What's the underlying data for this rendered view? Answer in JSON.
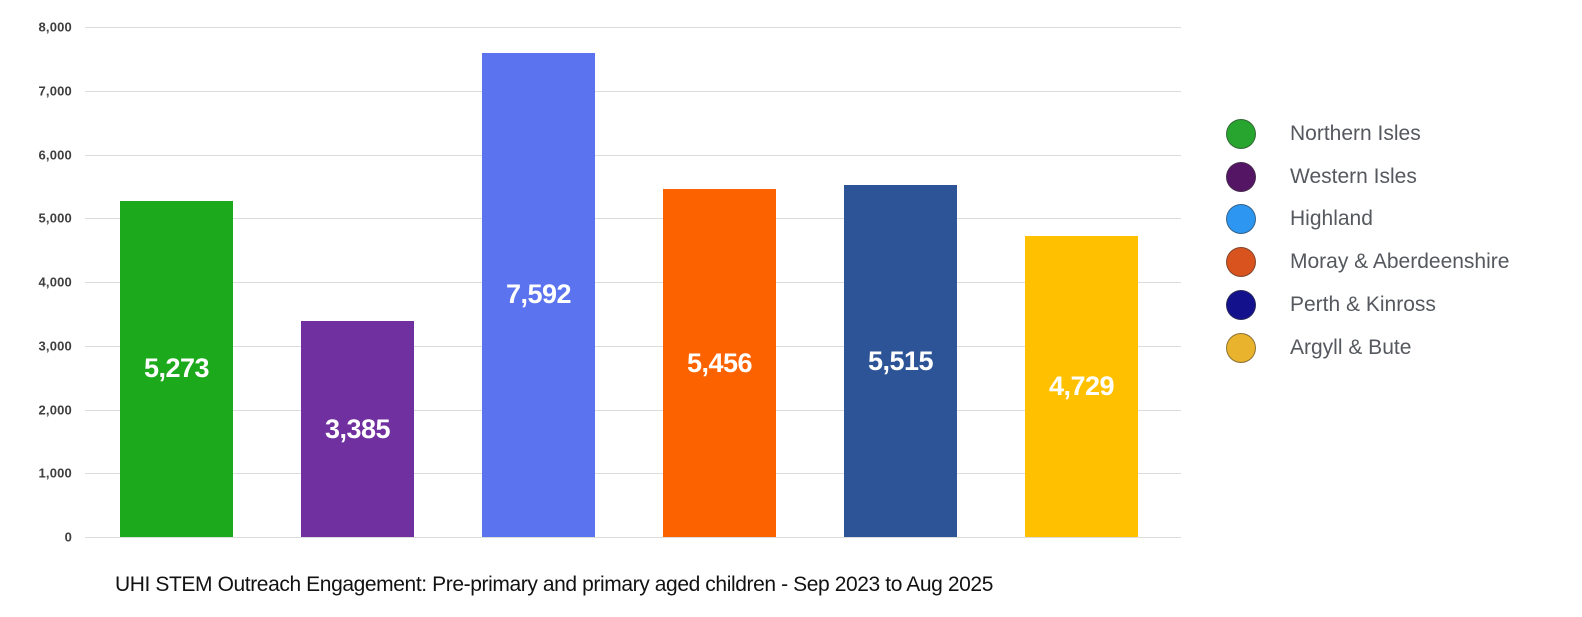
{
  "chart_data": {
    "type": "bar",
    "title": "UHI STEM Outreach Engagement: Pre-primary and primary aged children - Sep 2023 to Aug 2025",
    "xlabel": "",
    "ylabel": "",
    "ylim": [
      0,
      8000
    ],
    "ytick_interval": 1000,
    "ytick_labels": [
      "0",
      "1,000",
      "2,000",
      "3,000",
      "4,000",
      "5,000",
      "6,000",
      "7,000",
      "8,000"
    ],
    "grid": true,
    "legend_position": "right",
    "categories": [
      "Northern Isles",
      "Western Isles",
      "Highland",
      "Moray & Aberdeenshire",
      "Perth & Kinross",
      "Argyll & Bute"
    ],
    "values": [
      5273,
      3385,
      7592,
      5456,
      5515,
      4729
    ],
    "value_labels": [
      "5,273",
      "3,385",
      "7,592",
      "5,456",
      "5,515",
      "4,729"
    ],
    "bar_colors": [
      "#1ca91c",
      "#7030a0",
      "#5b73ee",
      "#fd6200",
      "#2d5497",
      "#ffc000"
    ],
    "legend_marker_colors": [
      "#27a52e",
      "#541565",
      "#2d96f0",
      "#d9531e",
      "#13128c",
      "#eab32e"
    ],
    "colors": {
      "gridline": "#dcdcdc",
      "ytick_text": "#3f3f3f",
      "bar_value_text": "#ffffff",
      "legend_text": "#55585e",
      "caption_text": "#121212",
      "background": "#ffffff"
    }
  }
}
